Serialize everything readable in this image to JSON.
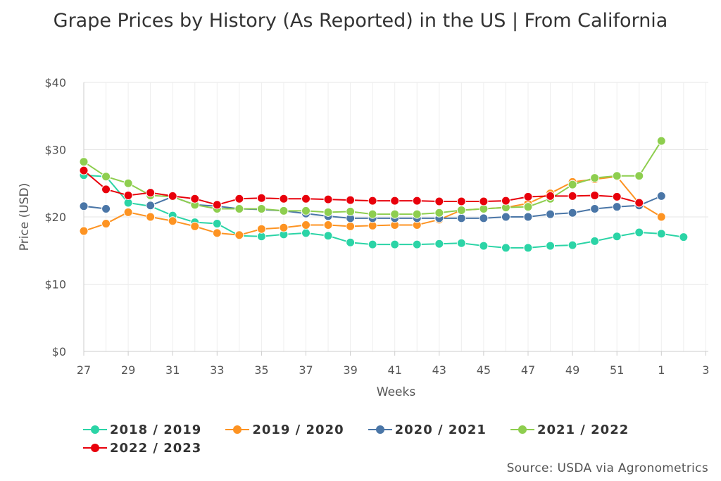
{
  "chart_data": {
    "type": "line",
    "title": "Grape Prices by History (As Reported) in the US | From California",
    "xlabel": "Weeks",
    "ylabel": "Price (USD)",
    "ylim": [
      0,
      40
    ],
    "y_ticks": [
      {
        "value": 0,
        "label": "$0"
      },
      {
        "value": 10,
        "label": "$10"
      },
      {
        "value": 20,
        "label": "$20"
      },
      {
        "value": 30,
        "label": "$30"
      },
      {
        "value": 40,
        "label": "$40"
      }
    ],
    "x_ticks": [
      "27",
      "29",
      "31",
      "33",
      "35",
      "37",
      "39",
      "41",
      "43",
      "45",
      "47",
      "49",
      "51",
      "1",
      "3"
    ],
    "x": [
      "27",
      "28",
      "29",
      "30",
      "31",
      "32",
      "33",
      "34",
      "35",
      "36",
      "37",
      "38",
      "39",
      "40",
      "41",
      "42",
      "43",
      "44",
      "45",
      "46",
      "47",
      "48",
      "49",
      "50",
      "51",
      "52",
      "1",
      "2",
      "3"
    ],
    "grid": true,
    "legend_position": "bottom",
    "series": [
      {
        "name": "2018 / 2019",
        "color": "#2bd4a6",
        "values": [
          26.2,
          26.0,
          22.1,
          21.6,
          20.2,
          19.2,
          19.0,
          17.2,
          17.1,
          17.4,
          17.6,
          17.2,
          16.2,
          15.9,
          15.9,
          15.9,
          16.0,
          16.1,
          15.7,
          15.4,
          15.4,
          15.7,
          15.8,
          16.4,
          17.1,
          17.7,
          17.5,
          17.0,
          null
        ]
      },
      {
        "name": "2019 / 2020",
        "color": "#fd9322",
        "values": [
          17.9,
          19.0,
          20.7,
          20.0,
          19.4,
          18.6,
          17.6,
          17.3,
          18.2,
          18.4,
          18.8,
          18.8,
          18.6,
          18.7,
          18.8,
          18.8,
          19.6,
          21.0,
          21.2,
          21.4,
          22.0,
          23.5,
          25.2,
          25.6,
          26.0,
          22.0,
          20.0,
          null,
          null
        ]
      },
      {
        "name": "2020 / 2021",
        "color": "#4a76a7",
        "values": [
          21.6,
          21.2,
          null,
          21.7,
          23.0,
          21.8,
          21.6,
          21.2,
          21.1,
          20.9,
          20.5,
          20.1,
          19.8,
          19.8,
          19.8,
          19.8,
          19.8,
          19.8,
          19.8,
          20.0,
          20.0,
          20.4,
          20.6,
          21.2,
          21.5,
          21.7,
          23.1,
          null,
          null
        ]
      },
      {
        "name": "2021 / 2022",
        "color": "#8ece4f",
        "values": [
          28.2,
          26.0,
          25.0,
          23.2,
          23.0,
          21.8,
          21.2,
          21.2,
          21.2,
          20.9,
          20.9,
          20.7,
          20.8,
          20.4,
          20.4,
          20.4,
          20.6,
          21.0,
          21.2,
          21.4,
          21.5,
          22.7,
          24.8,
          25.8,
          26.1,
          26.1,
          31.3,
          null,
          null
        ]
      },
      {
        "name": "2022 / 2023",
        "color": "#e8000b",
        "values": [
          26.9,
          24.1,
          23.2,
          23.6,
          23.1,
          22.7,
          21.8,
          22.7,
          22.8,
          22.7,
          22.7,
          22.6,
          22.5,
          22.4,
          22.4,
          22.4,
          22.3,
          22.3,
          22.3,
          22.4,
          23.0,
          23.1,
          23.1,
          23.2,
          23.0,
          22.1,
          null,
          null,
          null
        ]
      }
    ],
    "source": "Source: USDA via Agronometrics"
  }
}
